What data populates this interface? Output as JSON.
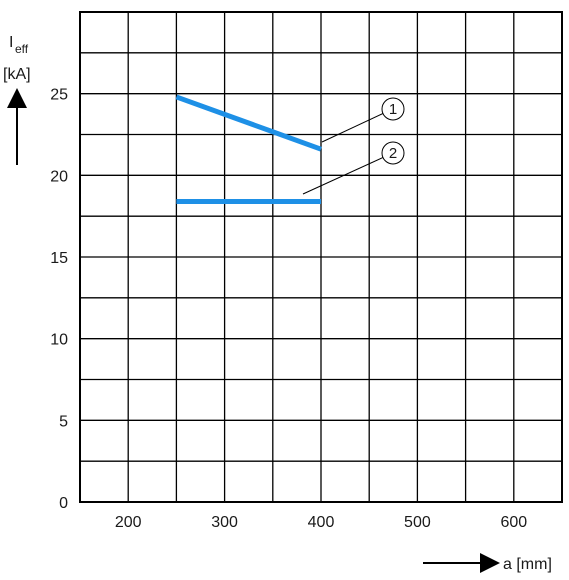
{
  "chart_data": {
    "type": "line",
    "ylabel_main": "I",
    "ylabel_sub": "eff",
    "yunit": "[kA]",
    "xlabel": "a [mm]",
    "xlim": [
      150,
      650
    ],
    "ylim": [
      0,
      30
    ],
    "x_ticks": [
      "200",
      "300",
      "400",
      "500",
      "600"
    ],
    "y_ticks": [
      "0",
      "5",
      "10",
      "15",
      "20",
      "25"
    ],
    "grid": true,
    "series": [
      {
        "name": "1",
        "color": "#1e90e6",
        "x": [
          250,
          400
        ],
        "y": [
          24.8,
          21.6
        ]
      },
      {
        "name": "2",
        "color": "#1e90e6",
        "x": [
          250,
          400
        ],
        "y": [
          18.4,
          18.4
        ]
      }
    ]
  }
}
